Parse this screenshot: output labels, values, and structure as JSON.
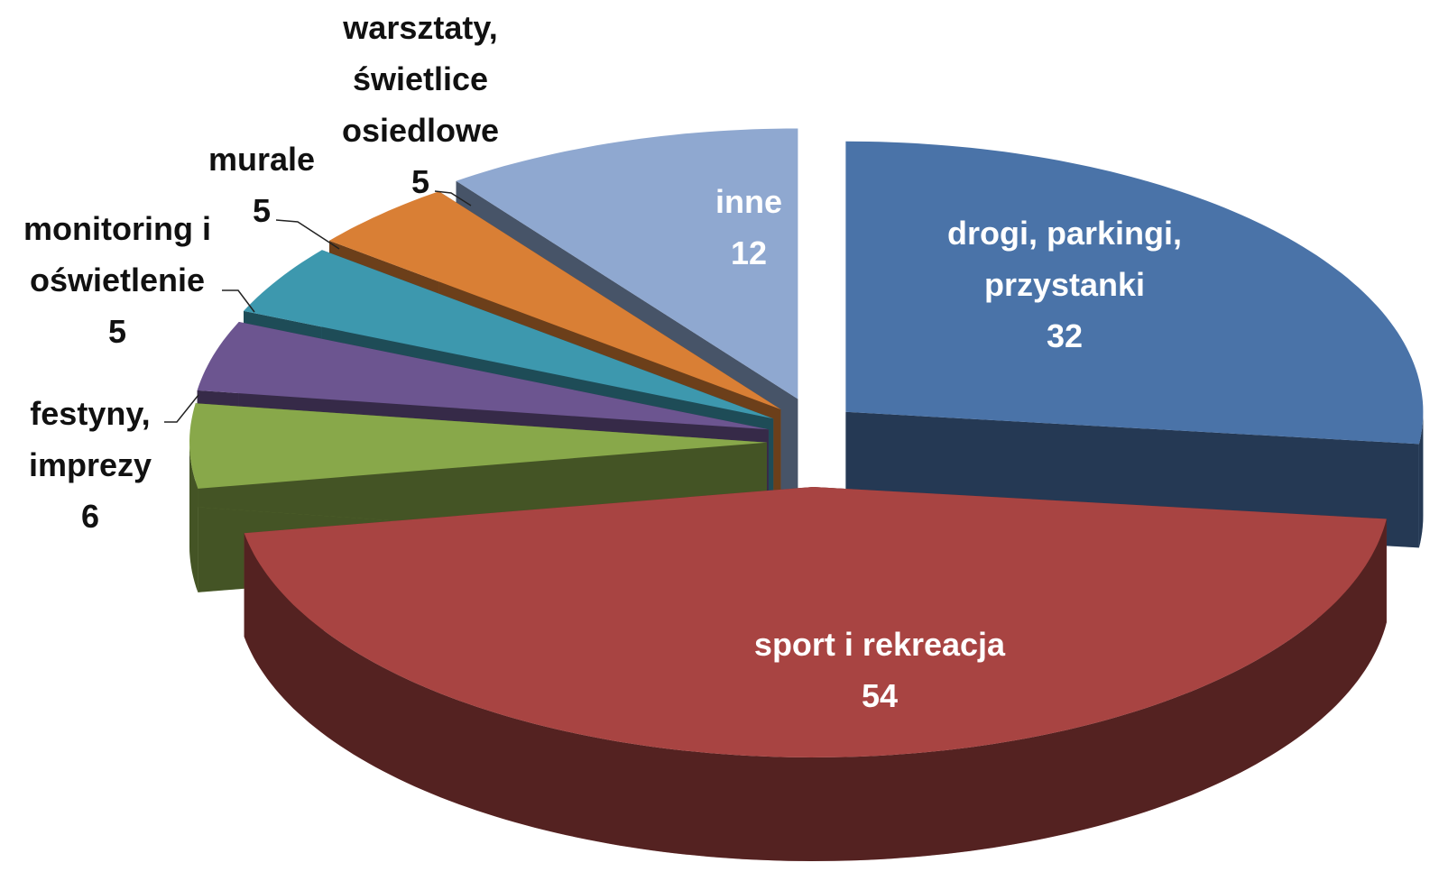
{
  "chart_data": {
    "type": "pie3d",
    "categories": [
      "drogi, parkingi, przystanki",
      "sport i rekreacja",
      "festyny, imprezy",
      "monitoring i oświetlenie",
      "murale",
      "warsztaty, świetlice osiedlowe",
      "inne"
    ],
    "values": [
      32,
      54,
      6,
      5,
      5,
      5,
      12
    ],
    "colors": [
      "#4a73a8",
      "#a84442",
      "#88a84a",
      "#6c5590",
      "#3d98ae",
      "#d97f35",
      "#8fa8d0"
    ],
    "exploded": true
  }
}
